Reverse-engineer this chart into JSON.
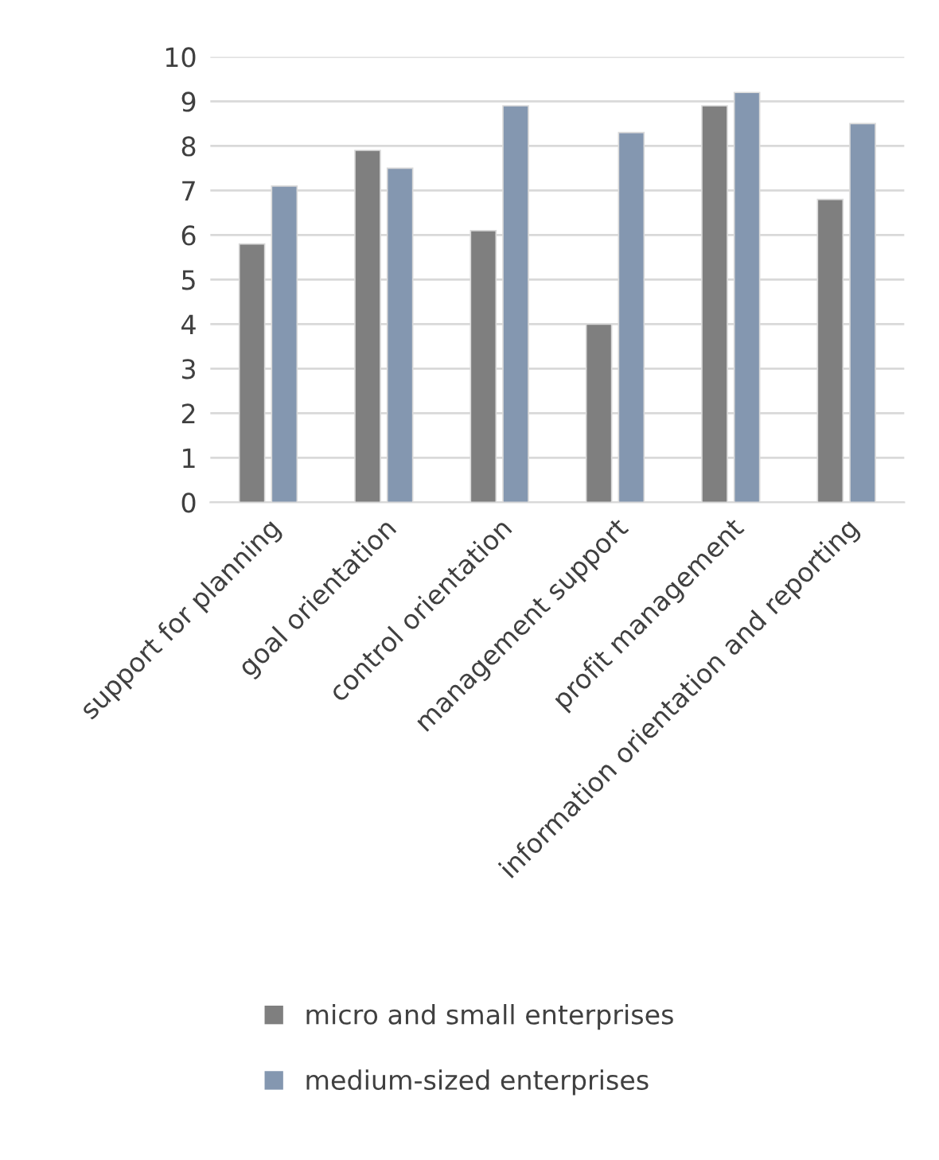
{
  "chart_data": {
    "type": "bar",
    "categories": [
      "support for planning",
      "goal orientation",
      "control orientation",
      "management support",
      "profit management",
      "information orientation and reporting"
    ],
    "series": [
      {
        "name": "micro and small enterprises",
        "color": "#7f7f7f",
        "values": [
          5.8,
          7.9,
          6.1,
          4.0,
          8.9,
          6.8
        ]
      },
      {
        "name": "medium-sized enterprises",
        "color": "#8497b0",
        "values": [
          7.1,
          7.5,
          8.9,
          8.3,
          9.2,
          8.5
        ]
      }
    ],
    "ylim": [
      0,
      10
    ],
    "yticks": [
      0,
      1,
      2,
      3,
      4,
      5,
      6,
      7,
      8,
      9,
      10
    ],
    "grid": "y",
    "legend": "bottom"
  }
}
